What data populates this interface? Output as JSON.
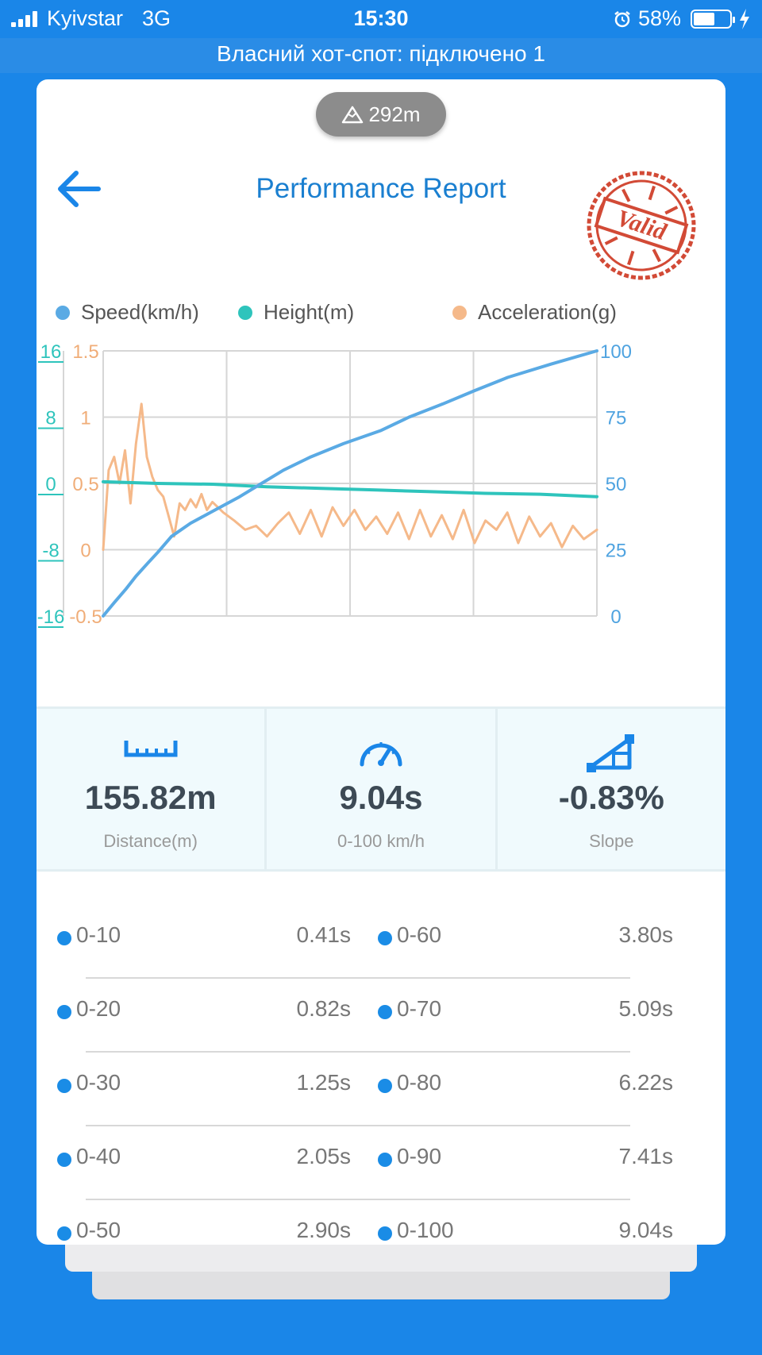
{
  "status_bar": {
    "carrier": "Kyivstar",
    "network": "3G",
    "time": "15:30",
    "battery": "58%",
    "battery_level": 0.58,
    "hotspot": "Власний хот-спот: підключено 1"
  },
  "header": {
    "altitude": "292m",
    "title": "Performance Report",
    "stamp": "Valid"
  },
  "legend": [
    {
      "name": "Speed(km/h)",
      "color": "#5aaae4"
    },
    {
      "name": "Height(m)",
      "color": "#2ec4bc"
    },
    {
      "name": "Acceleration(g)",
      "color": "#f5b98a"
    }
  ],
  "chart_data": {
    "type": "line",
    "axes": {
      "height_ticks": [
        "16",
        "8",
        "0",
        "-8",
        "-16"
      ],
      "accel_ticks": [
        "1.5",
        "1",
        "0.5",
        "0",
        "-0.5"
      ],
      "speed_ticks": [
        "100",
        "75",
        "50",
        "25",
        "0"
      ],
      "height_range": [
        -16,
        16
      ],
      "accel_range": [
        -0.5,
        1.5
      ],
      "speed_range": [
        0,
        100
      ],
      "x_range": [
        0,
        9.04
      ],
      "grid": true
    },
    "series": [
      {
        "name": "Speed(km/h)",
        "color": "#5aaae4",
        "axis": "right",
        "x": [
          0,
          0.2,
          0.41,
          0.6,
          0.82,
          1.0,
          1.25,
          1.6,
          2.05,
          2.5,
          2.9,
          3.3,
          3.8,
          4.4,
          5.09,
          5.6,
          6.22,
          6.8,
          7.41,
          8.2,
          9.04
        ],
        "y": [
          0,
          5,
          10,
          15,
          20,
          24,
          30,
          35,
          40,
          45,
          50,
          55,
          60,
          65,
          70,
          75,
          80,
          85,
          90,
          95,
          100
        ]
      },
      {
        "name": "Height(m)",
        "color": "#2ec4bc",
        "axis": "left",
        "x": [
          0,
          1,
          2,
          3,
          4,
          5,
          6,
          7,
          8,
          9.04
        ],
        "y": [
          0.2,
          0.0,
          -0.1,
          -0.4,
          -0.6,
          -0.8,
          -1.0,
          -1.2,
          -1.3,
          -1.6
        ]
      },
      {
        "name": "Acceleration(g)",
        "color": "#f5b98a",
        "axis": "left2",
        "x": [
          0,
          0.1,
          0.2,
          0.3,
          0.4,
          0.5,
          0.6,
          0.7,
          0.8,
          0.9,
          1.0,
          1.1,
          1.2,
          1.3,
          1.4,
          1.5,
          1.6,
          1.7,
          1.8,
          1.9,
          2.0,
          2.2,
          2.4,
          2.6,
          2.8,
          3.0,
          3.2,
          3.4,
          3.6,
          3.8,
          4.0,
          4.2,
          4.4,
          4.6,
          4.8,
          5.0,
          5.2,
          5.4,
          5.6,
          5.8,
          6.0,
          6.2,
          6.4,
          6.6,
          6.8,
          7.0,
          7.2,
          7.4,
          7.6,
          7.8,
          8.0,
          8.2,
          8.4,
          8.6,
          8.8,
          9.04
        ],
        "y": [
          0.0,
          0.6,
          0.7,
          0.5,
          0.75,
          0.35,
          0.8,
          1.1,
          0.7,
          0.55,
          0.45,
          0.4,
          0.25,
          0.1,
          0.35,
          0.3,
          0.38,
          0.32,
          0.42,
          0.3,
          0.36,
          0.28,
          0.22,
          0.15,
          0.18,
          0.1,
          0.2,
          0.28,
          0.12,
          0.3,
          0.1,
          0.32,
          0.18,
          0.3,
          0.15,
          0.25,
          0.12,
          0.28,
          0.08,
          0.3,
          0.1,
          0.26,
          0.08,
          0.3,
          0.05,
          0.22,
          0.15,
          0.28,
          0.05,
          0.25,
          0.1,
          0.2,
          0.02,
          0.18,
          0.08,
          0.15
        ]
      }
    ]
  },
  "stats": [
    {
      "value": "155.82m",
      "label": "Distance(m)",
      "icon": "ruler-icon"
    },
    {
      "value": "9.04s",
      "label": "0-100 km/h",
      "icon": "speedometer-icon"
    },
    {
      "value": "-0.83%",
      "label": "Slope",
      "icon": "slope-icon"
    }
  ],
  "times": [
    {
      "left": {
        "range": "0-10",
        "time": "0.41s"
      },
      "right": {
        "range": "0-60",
        "time": "3.80s"
      }
    },
    {
      "left": {
        "range": "0-20",
        "time": "0.82s"
      },
      "right": {
        "range": "0-70",
        "time": "5.09s"
      }
    },
    {
      "left": {
        "range": "0-30",
        "time": "1.25s"
      },
      "right": {
        "range": "0-80",
        "time": "6.22s"
      }
    },
    {
      "left": {
        "range": "0-40",
        "time": "2.05s"
      },
      "right": {
        "range": "0-90",
        "time": "7.41s"
      }
    },
    {
      "left": {
        "range": "0-50",
        "time": "2.90s"
      },
      "right": {
        "range": "0-100",
        "time": "9.04s"
      }
    }
  ]
}
